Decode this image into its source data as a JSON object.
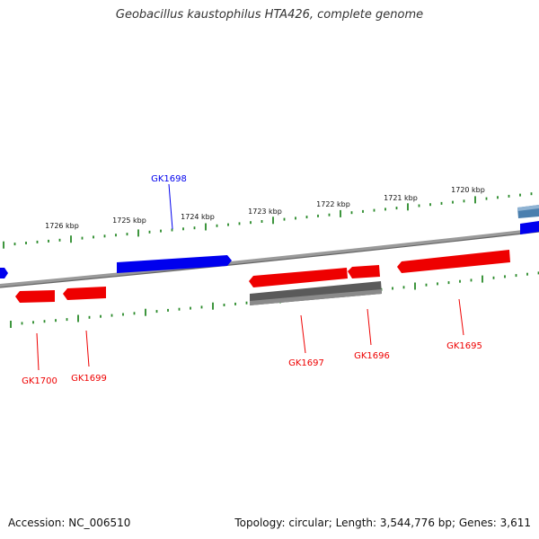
{
  "title": "Geobacillus kaustophilus HTA426, complete genome",
  "footer": {
    "accession": "Accession: NC_006510",
    "summary": "Topology: circular; Length: 3,544,776 bp; Genes: 3,611"
  },
  "colors": {
    "forward_strand": "#0000ee",
    "reverse_strand": "#ee0000",
    "other_feature": "#555555",
    "highlighted_feature": "#4a7fae",
    "backbone": "#808080",
    "tick": "#2a8a2a",
    "label_text": "#111111"
  },
  "scale_labels": [
    "1726 kbp",
    "1725 kbp",
    "1724 kbp",
    "1723 kbp",
    "1722 kbp",
    "1721 kbp",
    "1720 kbp"
  ],
  "gene_labels": {
    "GK1698": "GK1698",
    "GK1700": "GK1700",
    "GK1699": "GK1699",
    "GK1697": "GK1697",
    "GK1696": "GK1696",
    "GK1695": "GK1695"
  }
}
